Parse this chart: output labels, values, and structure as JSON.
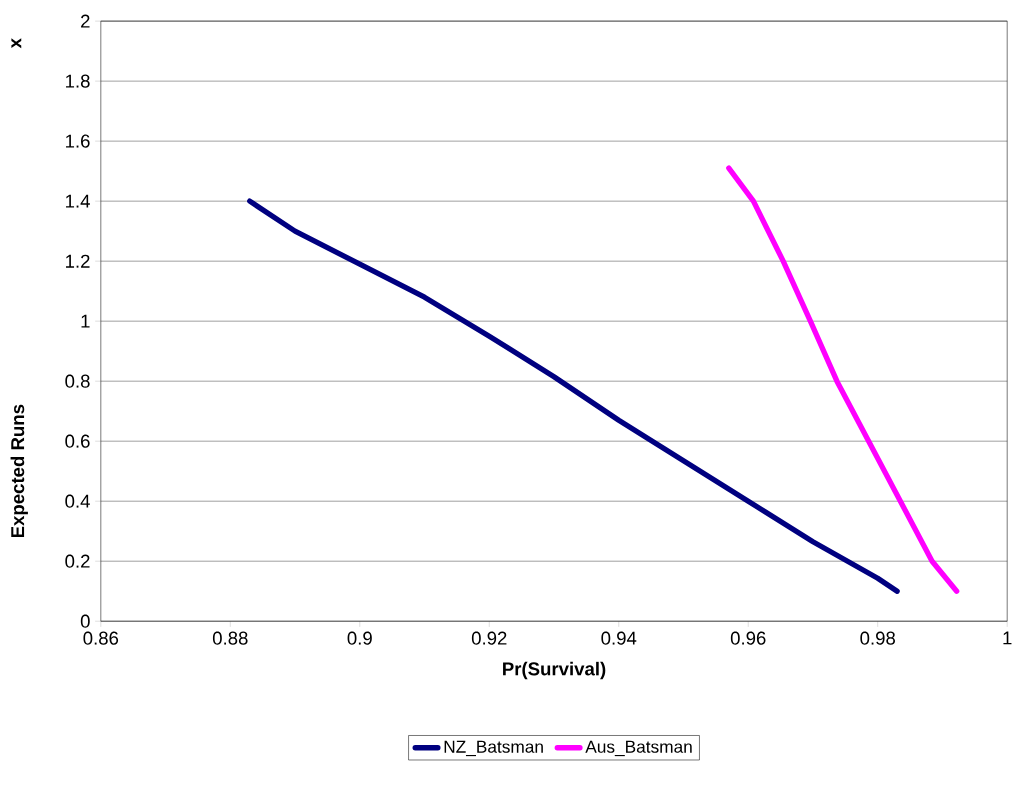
{
  "chart_data": {
    "type": "line",
    "xlabel": "Pr(Survival)",
    "ylabel": "Expected Runs",
    "annotations": [
      "x"
    ],
    "xlim": [
      0.86,
      1
    ],
    "xticks": [
      0.86,
      0.88,
      0.9,
      0.92,
      0.94,
      0.96,
      0.98,
      1
    ],
    "ylim": [
      0,
      2
    ],
    "yticks": [
      0,
      0.2,
      0.4,
      0.6,
      0.8,
      1,
      1.2,
      1.4,
      1.6,
      1.8,
      2
    ],
    "grid": "y",
    "legend": "bottom",
    "marker": "none",
    "line_style": "solid",
    "series": [
      {
        "name": "NZ_Batsman",
        "color": "#000080",
        "x": [
          0.883,
          0.89,
          0.9,
          0.91,
          0.92,
          0.93,
          0.94,
          0.95,
          0.96,
          0.97,
          0.98,
          0.983
        ],
        "values": [
          1.4,
          1.3,
          1.19,
          1.08,
          0.95,
          0.815,
          0.67,
          0.535,
          0.4,
          0.265,
          0.143,
          0.1
        ]
      },
      {
        "name": "Aus_Batsman",
        "color": "#ff00ff",
        "x": [
          0.957,
          0.9608,
          0.9654,
          0.9696,
          0.9737,
          0.9786,
          0.9835,
          0.9884,
          0.9922
        ],
        "values": [
          1.51,
          1.4,
          1.2,
          1.0,
          0.8,
          0.6,
          0.4,
          0.2,
          0.1
        ]
      }
    ]
  }
}
